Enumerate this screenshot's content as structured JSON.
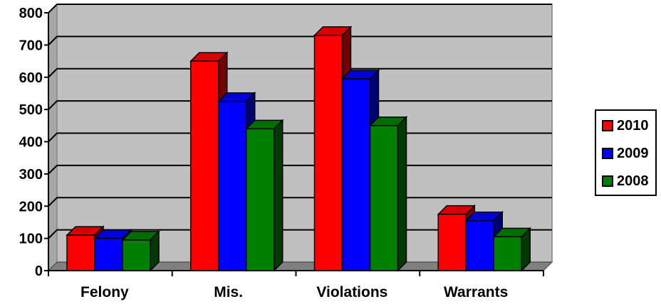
{
  "chart_data": {
    "type": "bar",
    "categories": [
      "Felony",
      "Mis.",
      "Violations",
      "Warrants"
    ],
    "series": [
      {
        "name": "2010",
        "values": [
          110,
          650,
          730,
          175
        ],
        "color": "#ff0000"
      },
      {
        "name": "2009",
        "values": [
          100,
          525,
          595,
          155
        ],
        "color": "#0000ff"
      },
      {
        "name": "2008",
        "values": [
          95,
          440,
          450,
          105
        ],
        "color": "#008000"
      }
    ],
    "ylim": [
      0,
      800
    ],
    "yticks": [
      "0",
      "100",
      "200",
      "300",
      "400",
      "500",
      "600",
      "700",
      "800"
    ],
    "grid": true,
    "wall_color": "#c0c0c0",
    "legend_position": "right"
  }
}
